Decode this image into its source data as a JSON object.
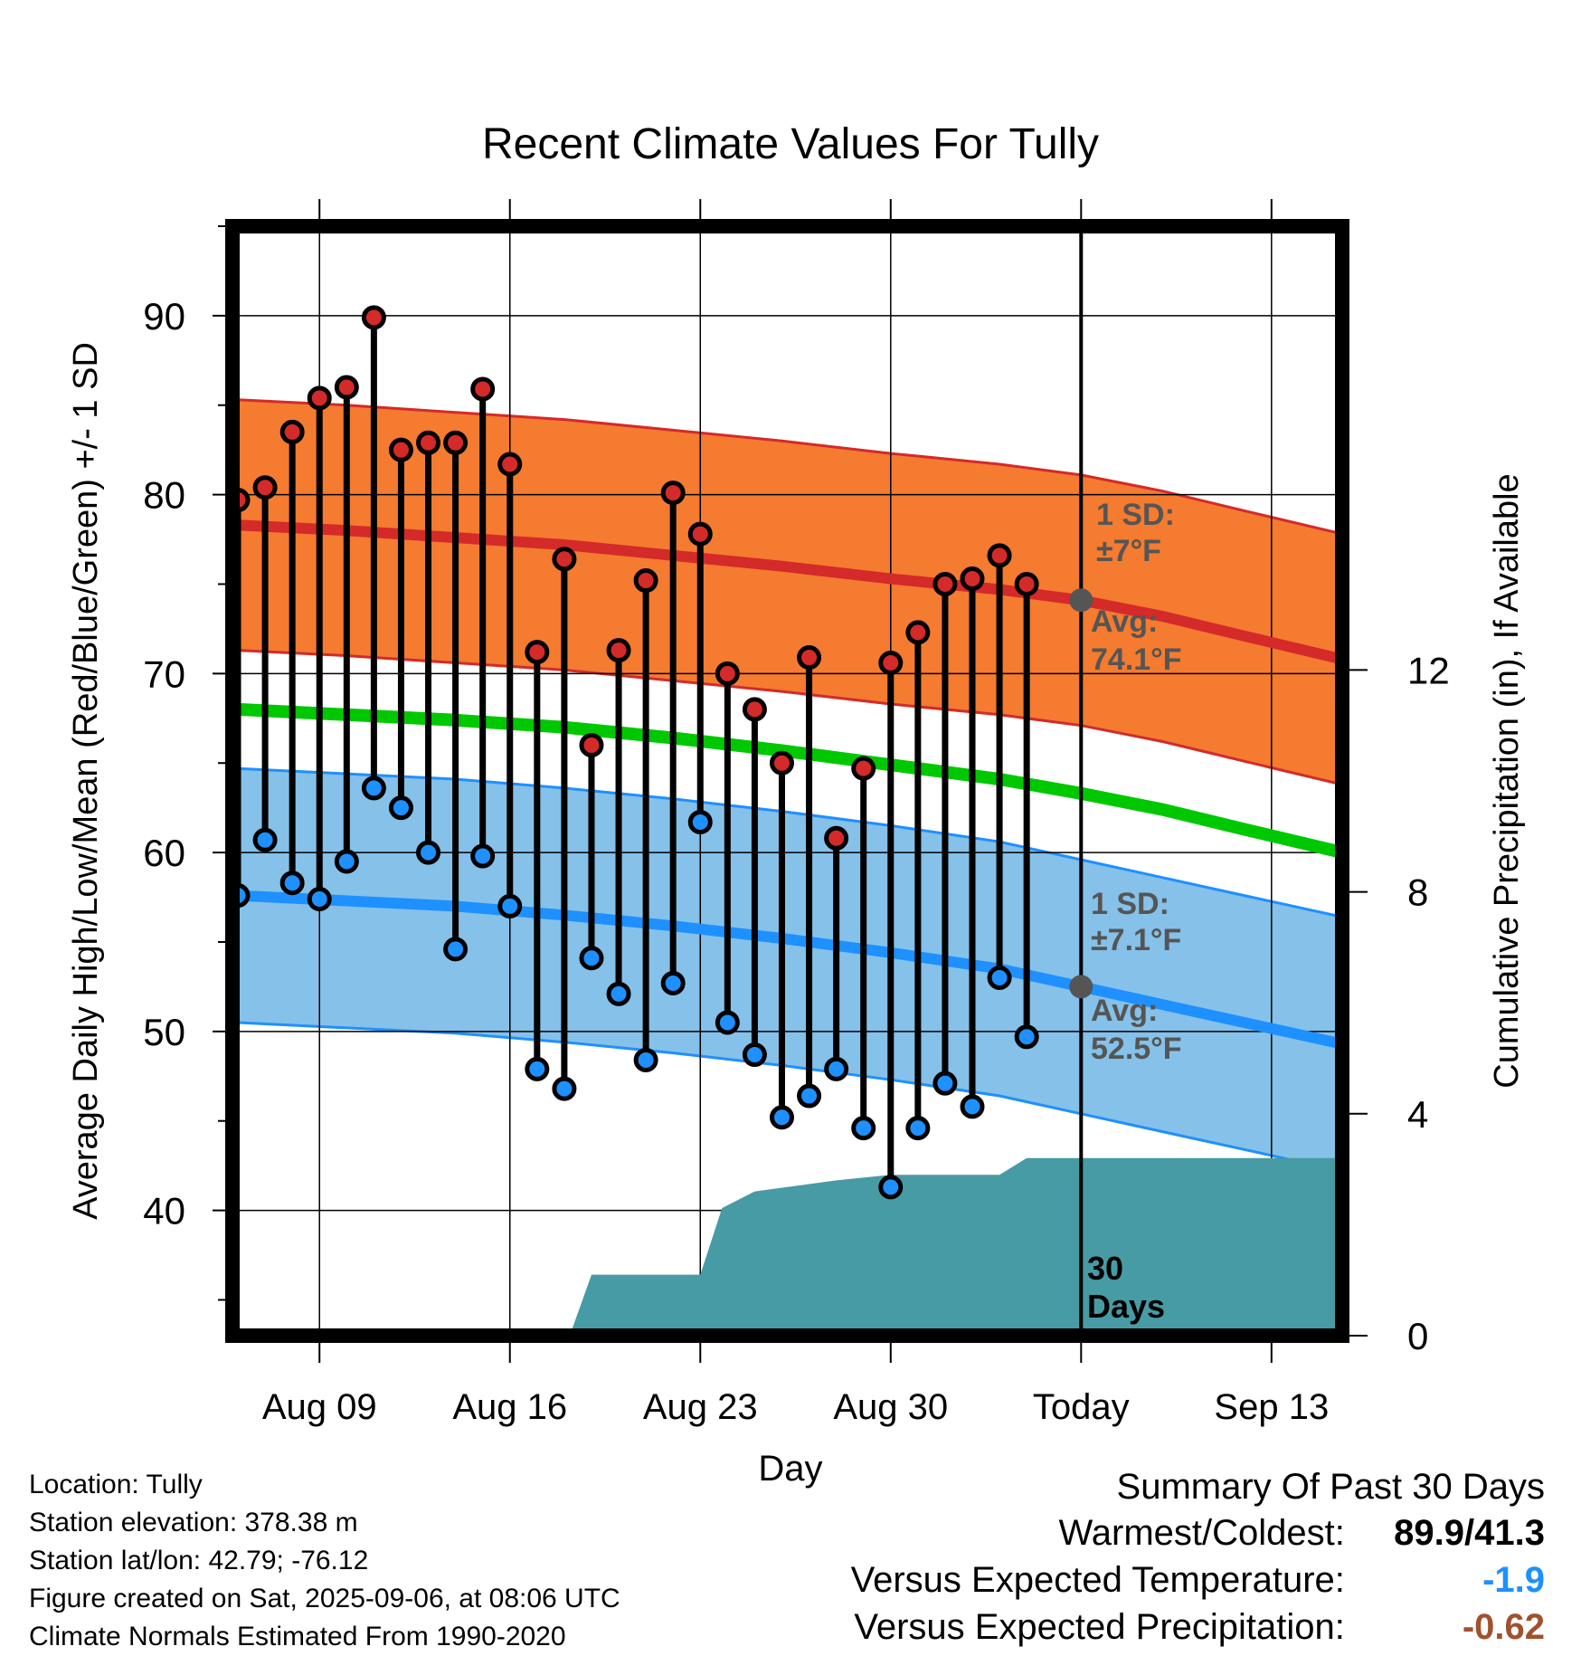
{
  "chart_data": {
    "type": "line",
    "title": "Recent Climate Values For Tully",
    "xlabel": "Day",
    "ylabel": "Average Daily High/Low/Mean (Red/Blue/Green) +/- 1 SD",
    "y2label": "Cumulative Precipitation (in), If Available",
    "ylim": [
      33,
      95
    ],
    "y2lim": [
      0,
      20
    ],
    "yticks": [
      40,
      50,
      60,
      70,
      80,
      90
    ],
    "y2ticks": [
      0,
      4,
      8,
      12
    ],
    "x_tick_labels": [
      {
        "day": 9,
        "label": "Aug 09"
      },
      {
        "day": 16,
        "label": "Aug 16"
      },
      {
        "day": 23,
        "label": "Aug 23"
      },
      {
        "day": 30,
        "label": "Aug 30"
      },
      {
        "day": 37,
        "label": "Today"
      },
      {
        "day": 44,
        "label": "Sep 13"
      }
    ],
    "xlim_days": [
      5.8,
      46.6
    ],
    "today_day": 37,
    "grid": true,
    "normals": {
      "days": [
        6,
        10,
        14,
        18,
        22,
        26,
        30,
        34,
        37,
        40,
        43,
        46.6
      ],
      "high_mean": [
        78.3,
        78.0,
        77.6,
        77.2,
        76.6,
        76.0,
        75.3,
        74.7,
        74.1,
        73.2,
        72.1,
        70.8
      ],
      "high_sd": 7,
      "low_mean": [
        57.6,
        57.3,
        57.0,
        56.5,
        55.9,
        55.2,
        54.4,
        53.5,
        52.5,
        51.5,
        50.5,
        49.3
      ],
      "low_sd": 7.1,
      "avg_mean": [
        68.0,
        67.7,
        67.4,
        67.0,
        66.4,
        65.7,
        64.9,
        64.1,
        63.3,
        62.4,
        61.3,
        60.0
      ]
    },
    "series": [
      {
        "name": "High",
        "days": [
          6,
          7,
          8,
          9,
          10,
          11,
          12,
          13,
          14,
          15,
          16,
          17,
          18,
          19,
          20,
          21,
          22,
          23,
          24,
          25,
          26,
          27,
          28,
          29,
          30,
          31,
          32,
          33,
          34,
          35,
          36
        ],
        "values": [
          79.7,
          80.4,
          83.5,
          85.4,
          86.0,
          89.9,
          82.5,
          82.9,
          82.9,
          85.9,
          81.7,
          71.2,
          76.4,
          66.0,
          71.3,
          75.2,
          80.1,
          77.8,
          70.0,
          68.0,
          65.0,
          70.9,
          60.8,
          64.7,
          70.6,
          72.3,
          75.0,
          75.3,
          76.6,
          75.0,
          null
        ]
      },
      {
        "name": "Low",
        "days": [
          6,
          7,
          8,
          9,
          10,
          11,
          12,
          13,
          14,
          15,
          16,
          17,
          18,
          19,
          20,
          21,
          22,
          23,
          24,
          25,
          26,
          27,
          28,
          29,
          30,
          31,
          32,
          33,
          34,
          35,
          36
        ],
        "values": [
          57.6,
          60.7,
          58.3,
          57.4,
          59.5,
          63.6,
          62.5,
          60.0,
          54.6,
          59.8,
          57.0,
          47.9,
          46.8,
          54.1,
          52.1,
          48.4,
          52.7,
          61.7,
          50.5,
          48.7,
          45.2,
          46.4,
          47.9,
          44.6,
          41.3,
          44.6,
          47.1,
          45.8,
          53.0,
          49.7,
          null
        ]
      }
    ],
    "precipitation": {
      "days": [
        18.2,
        19.0,
        22.0,
        23.0,
        23.8,
        25.0,
        26.5,
        28.0,
        30.0,
        34.0,
        35.0,
        37.0,
        46.6
      ],
      "values": [
        0,
        1.1,
        1.1,
        1.1,
        2.3,
        2.6,
        2.7,
        2.8,
        2.9,
        2.9,
        3.2,
        3.2,
        3.2
      ]
    },
    "annotations": {
      "high_sd": "1 SD:",
      "high_sd_value": "±7°F",
      "high_avg": "Avg:",
      "high_avg_value": "74.1°F",
      "low_sd": "1 SD:",
      "low_sd_value": "±7.1°F",
      "low_avg": "Avg:",
      "low_avg_value": "52.5°F",
      "days_num": "30",
      "days_word": "Days"
    },
    "colors": {
      "high": "#d42a2a",
      "high_band": "#f47b2f",
      "low": "#1e90ff",
      "low_band": "#85c1e9",
      "avg": "#00c800",
      "precip": "#479ba4",
      "annotation": "#555555"
    }
  },
  "info": {
    "location": "Location: Tully",
    "elevation": "Station elevation: 378.38 m",
    "latlon": "Station lat/lon: 42.79; -76.12",
    "created": "Figure created on Sat, 2025-09-06, at 08:06 UTC",
    "normals": "Climate Normals Estimated From 1990-2020"
  },
  "summary": {
    "heading": "Summary Of Past 30 Days",
    "warmest_coldest_label": "Warmest/Coldest:",
    "warmest_coldest_value": "89.9/41.3",
    "temp_label": "Versus Expected Temperature:",
    "temp_value": "-1.9",
    "temp_color": "#1e90ff",
    "precip_label": "Versus Expected Precipitation:",
    "precip_value": "-0.62",
    "precip_color": "#a0522d"
  }
}
